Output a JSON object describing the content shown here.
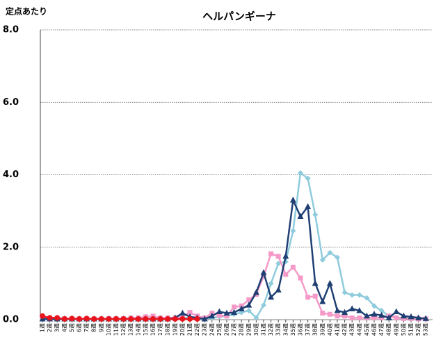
{
  "chart_data": {
    "type": "line",
    "title": "ヘルパンギーナ",
    "y_label": "定点あたり",
    "categories": [
      "1週",
      "2週",
      "3週",
      "4週",
      "5週",
      "6週",
      "7週",
      "8週",
      "9週",
      "10週",
      "11週",
      "12週",
      "13週",
      "14週",
      "15週",
      "16週",
      "17週",
      "18週",
      "19週",
      "20週",
      "21週",
      "22週",
      "23週",
      "24週",
      "25週",
      "26週",
      "27週",
      "28週",
      "29週",
      "30週",
      "31週",
      "32週",
      "33週",
      "34週",
      "35週",
      "36週",
      "37週",
      "38週",
      "39週",
      "40週",
      "41週",
      "42週",
      "43週",
      "44週",
      "45週",
      "46週",
      "47週",
      "48週",
      "49週",
      "50週",
      "51週",
      "52週",
      "53週"
    ],
    "ylim": [
      0,
      8
    ],
    "yticks": [
      {
        "value": 0,
        "label": "0.0"
      },
      {
        "value": 2,
        "label": "2.0"
      },
      {
        "value": 4,
        "label": "4.0"
      },
      {
        "value": 6,
        "label": "6.0"
      },
      {
        "value": 8,
        "label": "8.0"
      }
    ],
    "grid": true,
    "series": [
      {
        "color": "#8ecbdc",
        "marker": "diamond",
        "values": [
          0.03,
          0.02,
          0.03,
          0.02,
          0.02,
          0.02,
          0.03,
          0.02,
          0.02,
          0.02,
          0.02,
          0.02,
          0.02,
          0.02,
          0.03,
          0.03,
          0.03,
          0.03,
          0.03,
          0.05,
          0.05,
          0.03,
          0.02,
          0.05,
          0.08,
          0.1,
          0.15,
          0.2,
          0.25,
          0.05,
          0.4,
          1.0,
          1.55,
          1.6,
          2.45,
          4.05,
          3.9,
          2.9,
          1.65,
          1.85,
          1.72,
          0.75,
          0.68,
          0.68,
          0.6,
          0.38,
          0.25,
          0.1,
          0.05,
          0.05,
          0.03,
          0.02,
          0.02
        ]
      },
      {
        "color": "#f59ac8",
        "marker": "square",
        "values": [
          0.03,
          0.03,
          0.02,
          0.03,
          0.02,
          0.02,
          0.03,
          0.02,
          0.02,
          0.03,
          0.03,
          0.03,
          0.05,
          0.05,
          0.08,
          0.1,
          0.05,
          0.05,
          0.05,
          0.08,
          0.2,
          0.1,
          0.05,
          0.18,
          0.12,
          0.1,
          0.35,
          0.38,
          0.55,
          0.7,
          1.2,
          1.82,
          1.75,
          1.25,
          1.45,
          1.15,
          0.62,
          0.65,
          0.18,
          0.15,
          0.1,
          0.1,
          0.05,
          0.05,
          0.05,
          0.05,
          0.05,
          0.1,
          0.05,
          0.03,
          0.03,
          0.02,
          0.02
        ]
      },
      {
        "color": "#1f3f73",
        "marker": "triangle",
        "values": [
          0.02,
          0.02,
          0.02,
          0.02,
          0.02,
          0.02,
          0.02,
          0.02,
          0.02,
          0.02,
          0.02,
          0.02,
          0.02,
          0.02,
          0.02,
          0.02,
          0.02,
          0.02,
          0.05,
          0.18,
          0.08,
          0.05,
          0.02,
          0.1,
          0.22,
          0.18,
          0.2,
          0.3,
          0.4,
          0.75,
          1.3,
          0.62,
          0.82,
          1.75,
          3.3,
          2.85,
          3.12,
          1.0,
          0.5,
          1.0,
          0.25,
          0.2,
          0.3,
          0.25,
          0.1,
          0.15,
          0.12,
          0.05,
          0.22,
          0.1,
          0.08,
          0.05,
          0.03
        ]
      },
      {
        "color": "#e8141c",
        "marker": "circle",
        "values": [
          0.1,
          0.05,
          0.05,
          0.02,
          0.03,
          0.02,
          0.03,
          0.02,
          0.02,
          0.02,
          0.02,
          0.02,
          0.02,
          0.02,
          0.02,
          0.02,
          0.02,
          0.02,
          0.02,
          0.02,
          0.02,
          0.02,
          null,
          null,
          null,
          null,
          null,
          null,
          null,
          null,
          null,
          null,
          null,
          null,
          null,
          null,
          null,
          null,
          null,
          null,
          null,
          null,
          null,
          null,
          null,
          null,
          null,
          null,
          null,
          null,
          null,
          null,
          null
        ]
      }
    ]
  }
}
